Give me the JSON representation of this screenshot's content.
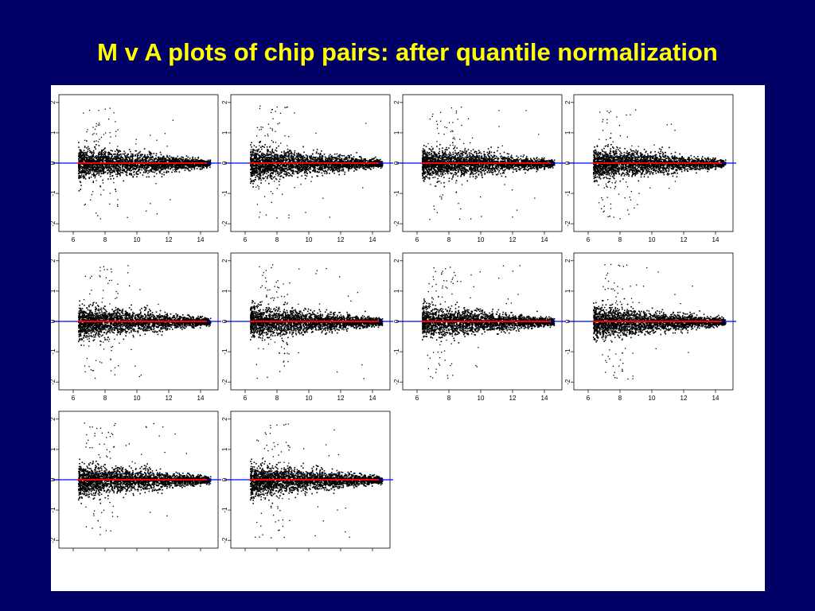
{
  "slide": {
    "title": "M v A plots of chip pairs: after quantile normalization"
  },
  "colors": {
    "background": "#000066",
    "title": "#ffff00",
    "points": "#000000",
    "zero_line": "#0000ff",
    "loess_line": "#ff0000"
  },
  "chart_data": {
    "type": "scatter",
    "panel_count": 10,
    "layout": "3 rows: 4, 4, 2 panels",
    "xlabel": "",
    "ylabel": "",
    "xlim": [
      5.5,
      14.8
    ],
    "ylim": [
      -2.1,
      2.1
    ],
    "x_ticks": [
      6,
      8,
      10,
      12,
      14
    ],
    "y_ticks": [
      -2,
      -1,
      0,
      1,
      2
    ],
    "y_tick_labels": [
      "-2",
      "-1",
      "0",
      "1",
      "2"
    ],
    "grid": false,
    "reference_line": {
      "y": 0,
      "color": "#0000ff"
    },
    "fit_line": {
      "y": 0,
      "color": "#ff0000"
    },
    "point_cloud": {
      "x_range": [
        6.3,
        14.6
      ],
      "dense_x_range": [
        6.3,
        14.2
      ],
      "spread_at_x_7": [
        -0.55,
        0.55
      ],
      "spread_at_x_14": [
        -0.1,
        0.1
      ],
      "outliers_y_max": 2.0,
      "outliers_y_min": -2.0
    }
  }
}
